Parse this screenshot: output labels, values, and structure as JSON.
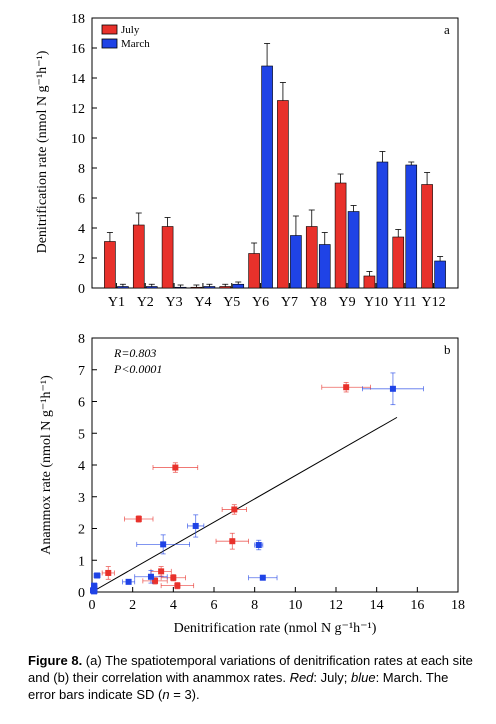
{
  "chart_data": [
    {
      "type": "bar",
      "panel_label": "a",
      "ylabel": "Denitrification rate (nmol N g⁻¹h⁻¹)",
      "xlabel": "",
      "ylim": [
        0,
        18
      ],
      "yticks": [
        0,
        2,
        4,
        6,
        8,
        10,
        12,
        14,
        16,
        18
      ],
      "categories": [
        "Y1",
        "Y2",
        "Y3",
        "Y4",
        "Y5",
        "Y6",
        "Y7",
        "Y8",
        "Y9",
        "Y10",
        "Y11",
        "Y12"
      ],
      "legend_position": "top-left",
      "grid": false,
      "series": [
        {
          "name": "July",
          "color": "#e8312b",
          "values": [
            3.1,
            4.2,
            4.1,
            0.05,
            0.1,
            2.3,
            12.5,
            4.1,
            7.0,
            0.8,
            3.4,
            6.9
          ],
          "errors": [
            0.6,
            0.8,
            0.6,
            0.15,
            0.15,
            0.7,
            1.2,
            1.1,
            0.6,
            0.3,
            0.5,
            0.8
          ]
        },
        {
          "name": "March",
          "color": "#1f43e6",
          "values": [
            0.1,
            0.1,
            0.05,
            0.1,
            0.25,
            14.8,
            3.5,
            2.9,
            5.1,
            8.4,
            8.2,
            1.8
          ],
          "errors": [
            0.15,
            0.15,
            0.15,
            0.15,
            0.15,
            1.5,
            1.3,
            0.8,
            0.4,
            0.7,
            0.2,
            0.3
          ]
        }
      ]
    },
    {
      "type": "scatter",
      "panel_label": "b",
      "xlabel": "Denitrification rate (nmol N g⁻¹h⁻¹)",
      "ylabel": "Anammox rate (nmol N g⁻¹h⁻¹)",
      "xlim": [
        0,
        18
      ],
      "ylim": [
        0,
        8
      ],
      "xticks": [
        0,
        2,
        4,
        6,
        8,
        10,
        12,
        14,
        16,
        18
      ],
      "yticks": [
        0,
        1,
        2,
        3,
        4,
        5,
        6,
        7,
        8
      ],
      "grid": false,
      "annotations": [
        "R=0.803",
        "P<0.0001"
      ],
      "regression_line": {
        "x": [
          0,
          15.0
        ],
        "y": [
          0,
          5.5
        ],
        "color": "#000000"
      },
      "series": [
        {
          "name": "July",
          "color": "#e8312b",
          "points": [
            {
              "x": 12.5,
              "y": 6.45,
              "xerr": 1.2,
              "yerr": 0.15
            },
            {
              "x": 4.1,
              "y": 3.92,
              "xerr": 1.1,
              "yerr": 0.15
            },
            {
              "x": 7.0,
              "y": 2.6,
              "xerr": 0.6,
              "yerr": 0.15
            },
            {
              "x": 2.3,
              "y": 2.3,
              "xerr": 0.7,
              "yerr": 0.1
            },
            {
              "x": 6.9,
              "y": 1.6,
              "xerr": 0.8,
              "yerr": 0.25
            },
            {
              "x": 0.8,
              "y": 0.6,
              "xerr": 0.3,
              "yerr": 0.2
            },
            {
              "x": 3.4,
              "y": 0.65,
              "xerr": 0.5,
              "yerr": 0.15
            },
            {
              "x": 3.1,
              "y": 0.35,
              "xerr": 0.6,
              "yerr": 0.1
            },
            {
              "x": 4.0,
              "y": 0.45,
              "xerr": 0.6,
              "yerr": 0.1
            },
            {
              "x": 4.2,
              "y": 0.2,
              "xerr": 0.8,
              "yerr": 0.1
            },
            {
              "x": 0.05,
              "y": 0.05,
              "xerr": 0.15,
              "yerr": 0.05
            },
            {
              "x": 0.1,
              "y": 0.1,
              "xerr": 0.15,
              "yerr": 0.05
            }
          ]
        },
        {
          "name": "March",
          "color": "#1f43e6",
          "points": [
            {
              "x": 14.8,
              "y": 6.4,
              "xerr": 1.5,
              "yerr": 0.5
            },
            {
              "x": 5.1,
              "y": 2.08,
              "xerr": 0.4,
              "yerr": 0.35
            },
            {
              "x": 3.5,
              "y": 1.5,
              "xerr": 1.3,
              "yerr": 0.3
            },
            {
              "x": 8.2,
              "y": 1.48,
              "xerr": 0.2,
              "yerr": 0.15
            },
            {
              "x": 8.4,
              "y": 0.45,
              "xerr": 0.7,
              "yerr": 0.05
            },
            {
              "x": 2.9,
              "y": 0.48,
              "xerr": 0.8,
              "yerr": 0.2
            },
            {
              "x": 1.8,
              "y": 0.32,
              "xerr": 0.3,
              "yerr": 0.05
            },
            {
              "x": 0.25,
              "y": 0.52,
              "xerr": 0.15,
              "yerr": 0.05
            },
            {
              "x": 0.1,
              "y": 0.2,
              "xerr": 0.15,
              "yerr": 0.05
            },
            {
              "x": 0.1,
              "y": 0.1,
              "xerr": 0.15,
              "yerr": 0.05
            },
            {
              "x": 0.05,
              "y": 0.05,
              "xerr": 0.15,
              "yerr": 0.05
            },
            {
              "x": 0.1,
              "y": 0.02,
              "xerr": 0.15,
              "yerr": 0.05
            }
          ]
        }
      ]
    }
  ],
  "caption": {
    "lead": "Figure 8.",
    "part1": " (a) The spatiotemporal variations of denitrification rates at each site and (b) their correlation with anammox rates. ",
    "red_label": "Red",
    "part2": ": July; ",
    "blue_label": "blue",
    "part3": ": March. The error bars indicate SD (",
    "n_label": "n",
    "part4": " = 3)."
  }
}
